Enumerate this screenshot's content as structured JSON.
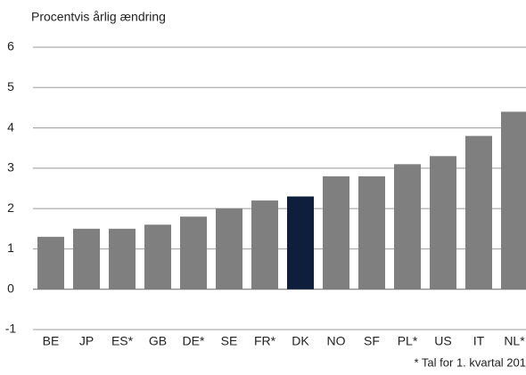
{
  "chart_data": {
    "type": "bar",
    "axis_label": "Procentvis årlig ændring",
    "footnote": "* Tal for 1. kvartal 201",
    "categories": [
      "BE",
      "JP",
      "ES*",
      "GB",
      "DE*",
      "SE",
      "FR*",
      "DK",
      "NO",
      "SF",
      "PL*",
      "US",
      "IT",
      "NL*"
    ],
    "values": [
      1.3,
      1.5,
      1.5,
      1.6,
      1.8,
      2.0,
      2.2,
      2.3,
      2.8,
      2.8,
      3.1,
      3.3,
      3.8,
      4.4
    ],
    "colors": [
      "#7f7f7f",
      "#7f7f7f",
      "#7f7f7f",
      "#7f7f7f",
      "#7f7f7f",
      "#7f7f7f",
      "#7f7f7f",
      "#0e1f3d",
      "#7f7f7f",
      "#7f7f7f",
      "#7f7f7f",
      "#7f7f7f",
      "#7f7f7f",
      "#7f7f7f"
    ],
    "ylim": [
      -1,
      6
    ],
    "yticks": [
      -1,
      0,
      1,
      2,
      3,
      4,
      5,
      6
    ],
    "grid": true
  }
}
